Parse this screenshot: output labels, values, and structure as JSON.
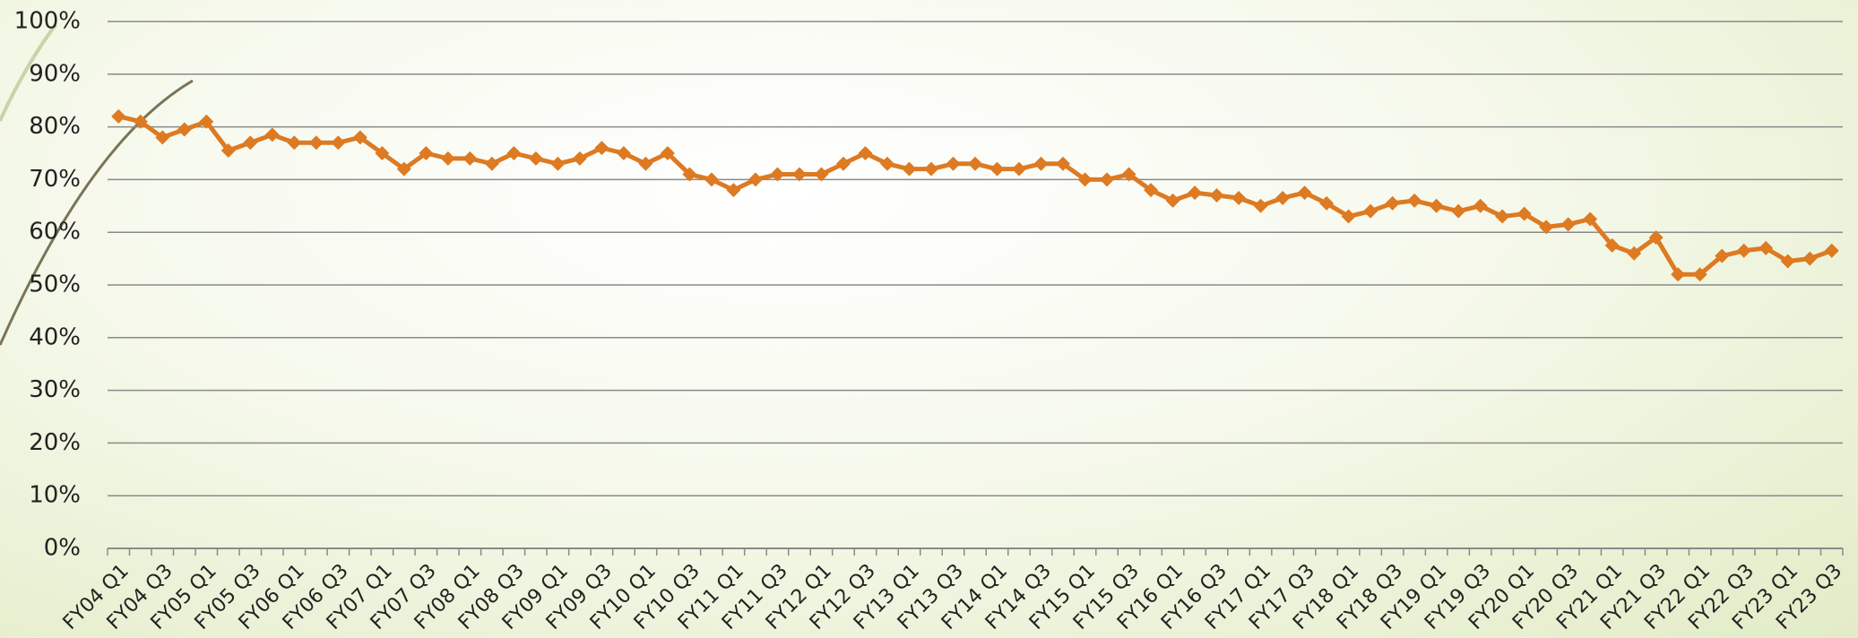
{
  "chart_data": {
    "type": "line",
    "categories": [
      "FY04 Q1",
      null,
      "FY04 Q3",
      null,
      "FY05 Q1",
      null,
      "FY05 Q3",
      null,
      "FY06 Q1",
      null,
      "FY06 Q3",
      null,
      "FY07 Q1",
      null,
      "FY07 Q3",
      null,
      "FY08 Q1",
      null,
      "FY08 Q3",
      null,
      "FY09 Q1",
      null,
      "FY09 Q3",
      null,
      "FY10 Q1",
      null,
      "FY10 Q3",
      null,
      "FY11 Q1",
      null,
      "FY11 Q3",
      null,
      "FY12 Q1",
      null,
      "FY12 Q3",
      null,
      "FY13 Q1",
      null,
      "FY13 Q3",
      null,
      "FY14 Q1",
      null,
      "FY14 Q3",
      null,
      "FY15 Q1",
      null,
      "FY15 Q3",
      null,
      "FY16 Q1",
      null,
      "FY16 Q3",
      null,
      "FY17 Q1",
      null,
      "FY17 Q3",
      null,
      "FY18 Q1",
      null,
      "FY18 Q3",
      null,
      "FY19 Q1",
      null,
      "FY19 Q3",
      null,
      "FY20 Q1",
      null,
      "FY20 Q3",
      null,
      "FY21 Q1",
      null,
      "FY21 Q3",
      null,
      "FY22 Q1",
      null,
      "FY22 Q3",
      null,
      "FY23 Q1",
      null,
      "FY23 Q3"
    ],
    "values": [
      82,
      81,
      78,
      79.5,
      81,
      75.5,
      77,
      78.5,
      77,
      77,
      77,
      78,
      75,
      72,
      75,
      74,
      74,
      73,
      75,
      74,
      73,
      74,
      76,
      75,
      73,
      75,
      71,
      70,
      68,
      70,
      71,
      71,
      71,
      73,
      75,
      73,
      72,
      72,
      73,
      73,
      72,
      72,
      73,
      73,
      70,
      70,
      71,
      68,
      66,
      67.5,
      67,
      66.5,
      65,
      66.5,
      67.5,
      65.5,
      63,
      64,
      65.5,
      66,
      65,
      64,
      65,
      63,
      63.5,
      61,
      61.5,
      62.5,
      57.5,
      56,
      59,
      52,
      52,
      55.5,
      56.5,
      57,
      54.5,
      55,
      56.5
    ],
    "color": "#dd7a22",
    "ylim": [
      0,
      100
    ],
    "yticks": [
      {
        "value": 0,
        "label": "0%"
      },
      {
        "value": 10,
        "label": "10%"
      },
      {
        "value": 20,
        "label": "20%"
      },
      {
        "value": 30,
        "label": "30%"
      },
      {
        "value": 40,
        "label": "40%"
      },
      {
        "value": 50,
        "label": "50%"
      },
      {
        "value": 60,
        "label": "60%"
      },
      {
        "value": 70,
        "label": "70%"
      },
      {
        "value": 80,
        "label": "80%"
      },
      {
        "value": 90,
        "label": "90%"
      },
      {
        "value": 100,
        "label": "100%"
      }
    ],
    "grid": true
  }
}
